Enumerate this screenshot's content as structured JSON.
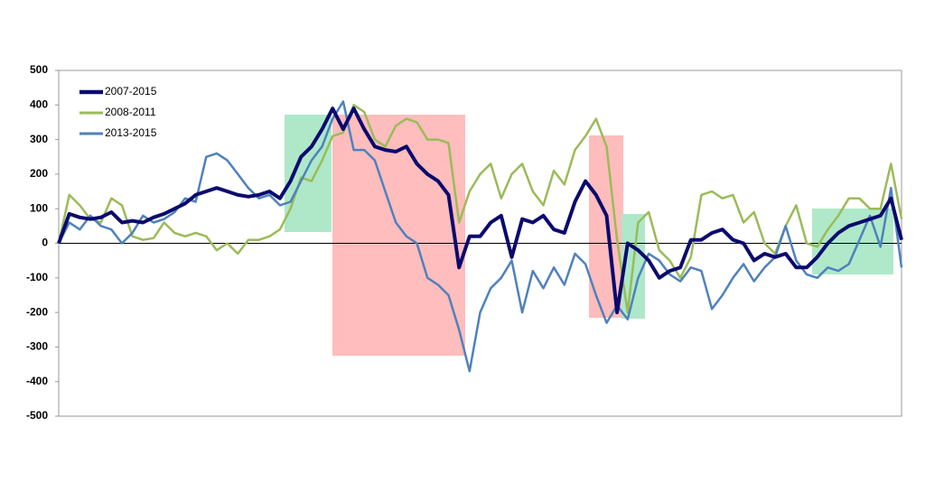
{
  "chart_data": {
    "type": "line",
    "categories": [
      null,
      null,
      null,
      null,
      null,
      null,
      null,
      null,
      null,
      null,
      null,
      null,
      null,
      null,
      null,
      null,
      null,
      null,
      null,
      null,
      null,
      null,
      null,
      null,
      null,
      null,
      null,
      null,
      null,
      null,
      null,
      null,
      null,
      null,
      null,
      null,
      null,
      null,
      null,
      null,
      null,
      null,
      null,
      null,
      null,
      null,
      null,
      null,
      null,
      null,
      null,
      null,
      null,
      null,
      null,
      null,
      null,
      null,
      null,
      null,
      null,
      null,
      null,
      null,
      null,
      null,
      null,
      null,
      null,
      null,
      null,
      null,
      null,
      null,
      null,
      null,
      null,
      null,
      null,
      null,
      null
    ],
    "series": [
      {
        "name": "2007-2015",
        "color": "#0a0a6e",
        "width": 4,
        "values": [
          0,
          85,
          75,
          70,
          75,
          90,
          60,
          65,
          60,
          75,
          85,
          100,
          115,
          140,
          150,
          160,
          150,
          140,
          135,
          140,
          150,
          130,
          180,
          250,
          280,
          330,
          390,
          330,
          390,
          330,
          280,
          270,
          265,
          280,
          230,
          200,
          180,
          140,
          -70,
          20,
          20,
          60,
          80,
          -40,
          70,
          60,
          80,
          40,
          30,
          120,
          180,
          140,
          80,
          -200,
          0,
          -20,
          -50,
          -100,
          -80,
          -70,
          10,
          10,
          30,
          40,
          10,
          0,
          -50,
          -30,
          -40,
          -30,
          -70,
          -70,
          -40,
          0,
          30,
          50,
          60,
          70,
          80,
          130,
          10
        ]
      },
      {
        "name": "2008-2011",
        "color": "#9bbb59",
        "width": 2.5,
        "values": [
          0,
          140,
          110,
          70,
          60,
          130,
          110,
          20,
          10,
          15,
          60,
          30,
          20,
          30,
          20,
          -20,
          0,
          -30,
          10,
          10,
          20,
          40,
          100,
          190,
          180,
          240,
          310,
          320,
          400,
          380,
          300,
          280,
          340,
          360,
          350,
          300,
          300,
          290,
          60,
          150,
          200,
          230,
          130,
          200,
          230,
          150,
          110,
          210,
          170,
          270,
          310,
          360,
          280,
          10,
          -200,
          60,
          90,
          -20,
          -50,
          -100,
          -40,
          140,
          150,
          130,
          140,
          60,
          90,
          0,
          -30,
          50,
          110,
          0,
          -10,
          40,
          80,
          130,
          130,
          100,
          100,
          230,
          70
        ]
      },
      {
        "name": "2013-2015",
        "color": "#4f81bd",
        "width": 2.5,
        "values": [
          0,
          60,
          40,
          80,
          50,
          40,
          0,
          30,
          80,
          60,
          70,
          90,
          130,
          120,
          250,
          260,
          240,
          200,
          160,
          130,
          140,
          110,
          120,
          180,
          240,
          280,
          360,
          410,
          270,
          270,
          240,
          150,
          60,
          20,
          0,
          -100,
          -120,
          -150,
          -250,
          -370,
          -200,
          -130,
          -100,
          -50,
          -200,
          -80,
          -130,
          -70,
          -120,
          -30,
          -60,
          -150,
          -230,
          -180,
          -220,
          -100,
          -30,
          -50,
          -90,
          -110,
          -70,
          -80,
          -190,
          -150,
          -100,
          -60,
          -110,
          -70,
          -40,
          50,
          -50,
          -90,
          -100,
          -70,
          -80,
          -60,
          10,
          80,
          -10,
          160,
          -70
        ]
      }
    ],
    "ylim": [
      -500,
      500
    ],
    "yticks": [
      -500,
      -400,
      -300,
      -200,
      -100,
      0,
      100,
      200,
      300,
      400,
      500
    ],
    "legend": "top-left"
  }
}
